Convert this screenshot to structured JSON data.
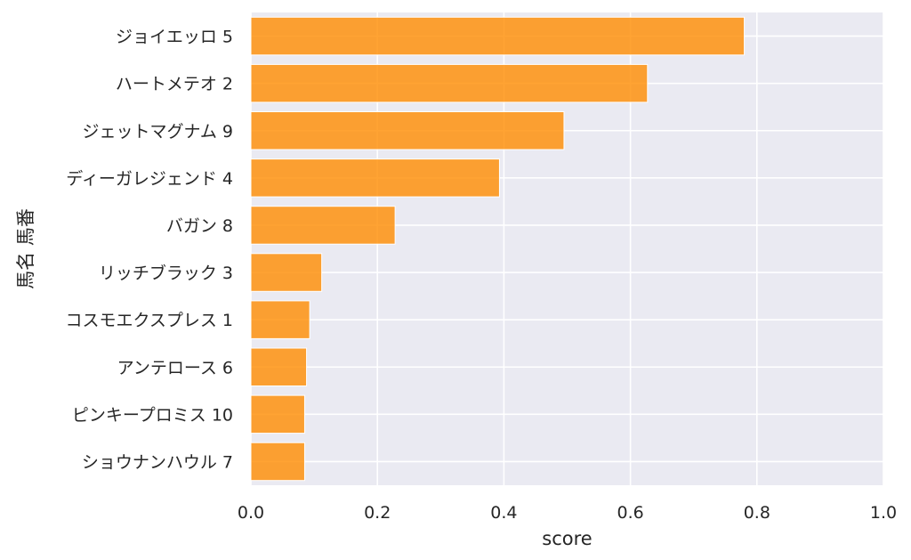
{
  "chart_data": {
    "type": "bar",
    "orientation": "horizontal",
    "categories": [
      "ジョイエッロ 5",
      "ハートメテオ 2",
      "ジェットマグナム 9",
      "ディーガレジェンド 4",
      "バガン 8",
      "リッチブラック 3",
      "コスモエクスプレス 1",
      "アンテロース 6",
      "ピンキープロミス 10",
      "ショウナンハウル 7"
    ],
    "values": [
      0.78,
      0.627,
      0.495,
      0.393,
      0.228,
      0.112,
      0.093,
      0.088,
      0.085,
      0.085
    ],
    "xlabel": "score",
    "ylabel": "馬名 馬番",
    "xlim": [
      0,
      1.0
    ],
    "xticks": [
      "0.0",
      "0.2",
      "0.4",
      "0.6",
      "0.8",
      "1.0"
    ],
    "grid": true,
    "colors": {
      "bar": "#ff8c00",
      "plot_background": "#eaeaf2",
      "grid": "#ffffff"
    }
  }
}
